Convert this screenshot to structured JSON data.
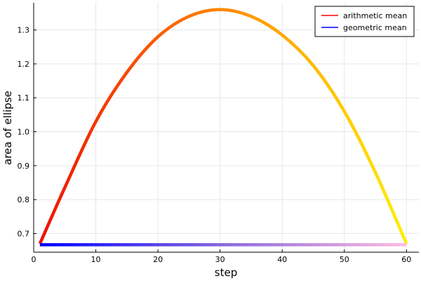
{
  "chart_data": {
    "type": "line",
    "xlabel": "step",
    "ylabel": "area of ellipse",
    "xlim": [
      0,
      62
    ],
    "ylim": [
      0.645,
      1.38
    ],
    "xticks": [
      0,
      10,
      20,
      30,
      40,
      50,
      60
    ],
    "yticks": [
      0.7,
      0.8,
      0.9,
      1.0,
      1.1,
      1.2,
      1.3
    ],
    "ytick_labels": [
      "0.7",
      "0.8",
      "0.9",
      "1.0",
      "1.1",
      "1.2",
      "1.3"
    ],
    "grid": true,
    "legend": "top-right",
    "series": [
      {
        "name": "arithmetic mean",
        "legend_color": "#ff0000",
        "gradient": [
          "#ee1100",
          "#ff8800",
          "#ffee00"
        ],
        "x": [
          1,
          5,
          10,
          15,
          20,
          25,
          30,
          35,
          40,
          45,
          50,
          55,
          60
        ],
        "y": [
          0.67,
          0.835,
          1.03,
          1.175,
          1.28,
          1.34,
          1.36,
          1.34,
          1.285,
          1.195,
          1.06,
          0.88,
          0.67
        ]
      },
      {
        "name": "geometric mean",
        "legend_color": "#0000ff",
        "gradient": [
          "#0000ff",
          "#8866dd",
          "#ffbbdd"
        ],
        "x": [
          1,
          60
        ],
        "y": [
          0.667,
          0.667
        ]
      }
    ]
  }
}
